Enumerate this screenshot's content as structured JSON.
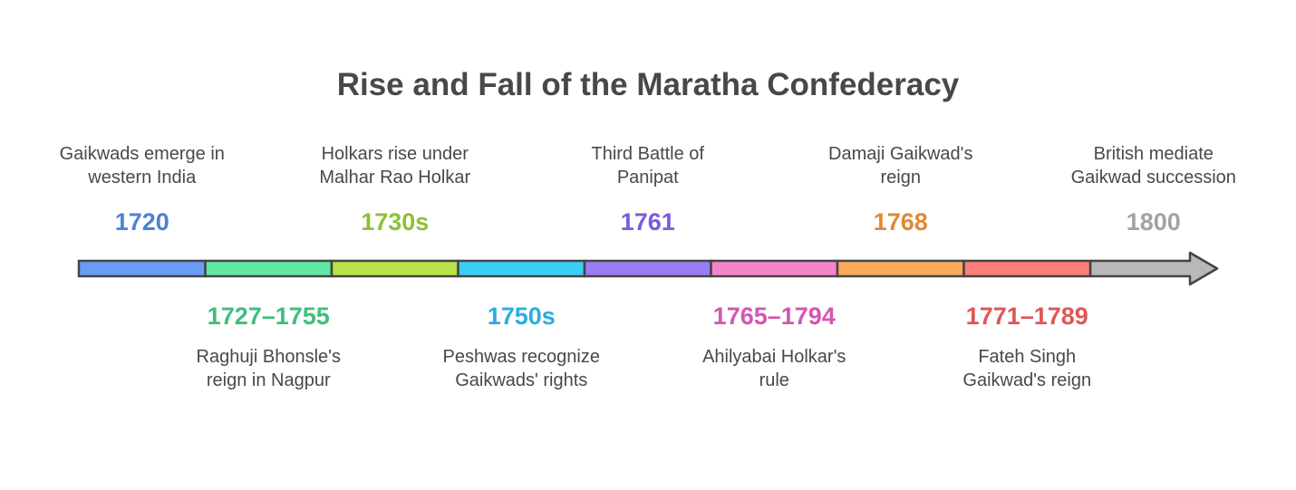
{
  "title": "Rise and Fall of the Maratha Confederacy",
  "events": [
    {
      "year": "1720",
      "desc": [
        "Gaikwads emerge in",
        "western India"
      ],
      "color": "#4f80d6",
      "bar": "#6a9cf5",
      "side": "top"
    },
    {
      "year": "1727–1755",
      "desc": [
        "Raghuji Bhonsle's",
        "reign in Nagpur"
      ],
      "color": "#3fbf7c",
      "bar": "#5ee8a4",
      "side": "bottom"
    },
    {
      "year": "1730s",
      "desc": [
        "Holkars rise under",
        "Malhar Rao Holkar"
      ],
      "color": "#8ebf38",
      "bar": "#b8e44a",
      "side": "top"
    },
    {
      "year": "1750s",
      "desc": [
        "Peshwas recognize",
        "Gaikwads' rights"
      ],
      "color": "#2aaedf",
      "bar": "#38cff5",
      "side": "bottom"
    },
    {
      "year": "1761",
      "desc": [
        "Third Battle of",
        "Panipat"
      ],
      "color": "#7a5be0",
      "bar": "#9a7cf5",
      "side": "top"
    },
    {
      "year": "1765–1794",
      "desc": [
        "Ahilyabai Holkar's",
        "rule"
      ],
      "color": "#d655b0",
      "bar": "#f585c9",
      "side": "bottom"
    },
    {
      "year": "1768",
      "desc": [
        "Damaji Gaikwad's",
        "reign"
      ],
      "color": "#de8a38",
      "bar": "#fba95a",
      "side": "top"
    },
    {
      "year": "1771–1789",
      "desc": [
        "Fateh Singh",
        "Gaikwad's reign"
      ],
      "color": "#de5757",
      "bar": "#fd7d78",
      "side": "bottom"
    },
    {
      "year": "1800",
      "desc": [
        "British mediate",
        "Gaikwad succession"
      ],
      "color": "#a3a3a3",
      "bar": "#b8b8b8",
      "side": "top"
    }
  ]
}
